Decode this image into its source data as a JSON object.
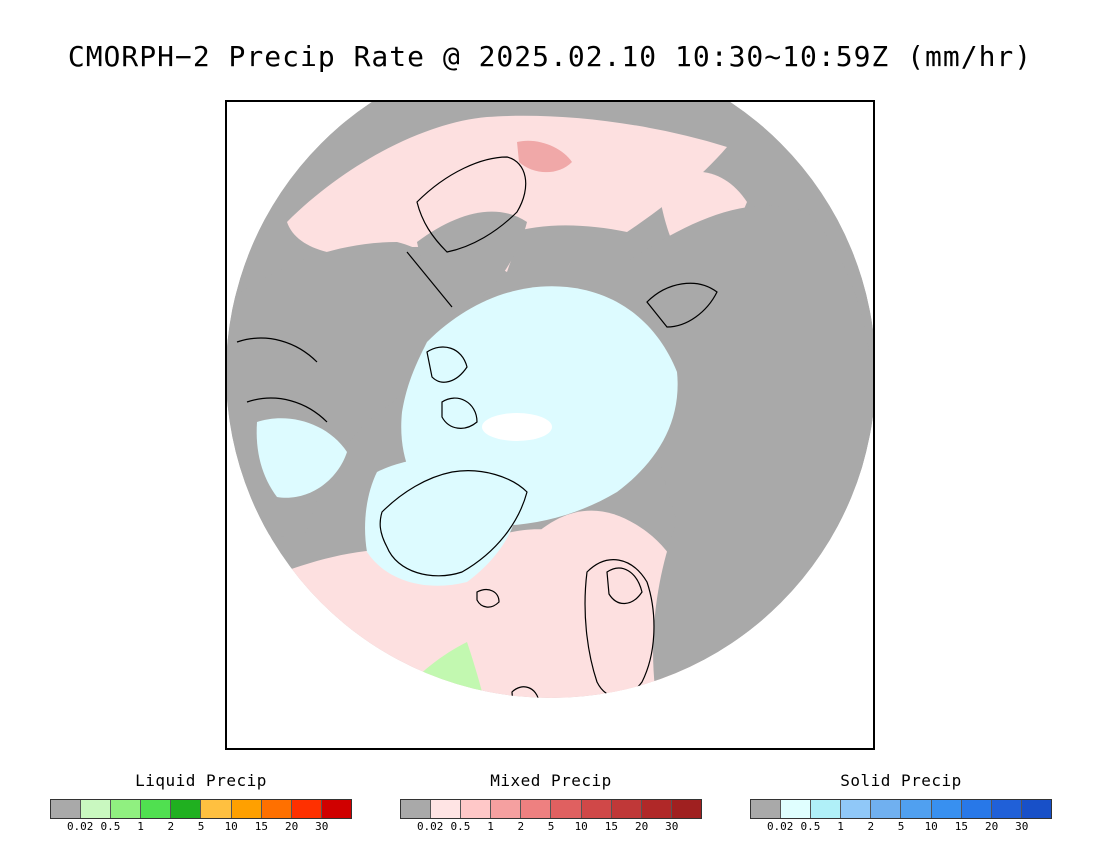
{
  "title": "CMORPH−2 Precip Rate @ 2025.02.10 10:30~10:59Z (mm/hr)",
  "map": {
    "colors": {
      "ocean_background": "#ffffff",
      "no_precip": "#a9a9a9",
      "light_snow": "#ddfbff",
      "light_mixed": "#fde0e0",
      "moderate_mixed": "#f0a8a8",
      "heavy_mixed": "#e07070",
      "light_rain": "#c2f8b0",
      "coastline": "#000000"
    }
  },
  "legends": [
    {
      "id": "liquid",
      "title": "Liquid Precip",
      "colors": [
        "#a9a9a9",
        "#c9f8c0",
        "#90f080",
        "#50e050",
        "#20b020",
        "#ffc040",
        "#ffa000",
        "#ff7000",
        "#ff3000",
        "#d00000"
      ],
      "ticks": [
        "0.02",
        "0.5",
        "1",
        "2",
        "5",
        "10",
        "15",
        "20",
        "30"
      ]
    },
    {
      "id": "mixed",
      "title": "Mixed Precip",
      "colors": [
        "#a9a9a9",
        "#ffe4e4",
        "#ffc8c8",
        "#f5a0a0",
        "#ee8080",
        "#e06060",
        "#d04848",
        "#c03838",
        "#b02828",
        "#a02020"
      ],
      "ticks": [
        "0.02",
        "0.5",
        "1",
        "2",
        "5",
        "10",
        "15",
        "20",
        "30"
      ]
    },
    {
      "id": "solid",
      "title": "Solid Precip",
      "colors": [
        "#a9a9a9",
        "#e0ffff",
        "#b0f0f8",
        "#90c8f8",
        "#70b0f0",
        "#50a0f0",
        "#3890f0",
        "#2878e8",
        "#2060d8",
        "#1850c8"
      ],
      "ticks": [
        "0.02",
        "0.5",
        "1",
        "2",
        "5",
        "10",
        "15",
        "20",
        "30"
      ]
    }
  ]
}
